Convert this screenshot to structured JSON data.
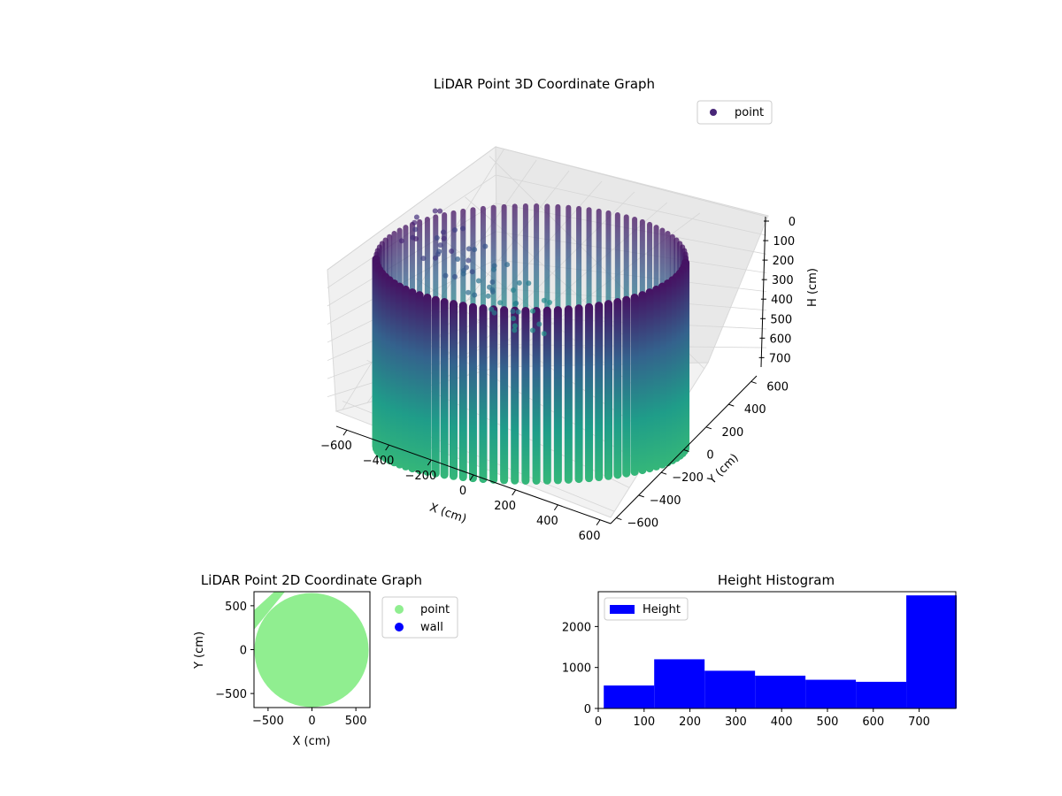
{
  "chart_data": [
    {
      "type": "scatter",
      "title": "LiDAR Point 3D Coordinate Graph",
      "xlabel": "X (cm)",
      "ylabel": "Y (cm)",
      "zlabel": "H (cm)",
      "xlim": [
        -650,
        650
      ],
      "ylim": [
        -650,
        650
      ],
      "zlim": [
        780,
        0
      ],
      "x_ticks": [
        -600,
        -400,
        -200,
        0,
        200,
        400,
        600
      ],
      "y_ticks": [
        -600,
        -400,
        -200,
        0,
        200,
        400,
        600
      ],
      "z_ticks": [
        0,
        100,
        200,
        300,
        400,
        500,
        600,
        700
      ],
      "grid": true,
      "legend": {
        "placement": "top-right",
        "entries": [
          {
            "label": "point",
            "color": "#482677"
          }
        ]
      },
      "colormap": "viridis",
      "series": [
        {
          "name": "point",
          "shape": "cylinder-wall",
          "radius": 620,
          "height_range": [
            0,
            780
          ],
          "columns": 90
        }
      ]
    },
    {
      "type": "scatter",
      "title": "LiDAR Point 2D Coordinate Graph",
      "xlabel": "X (cm)",
      "ylabel": "Y (cm)",
      "xlim": [
        -660,
        660
      ],
      "ylim": [
        -660,
        660
      ],
      "x_ticks": [
        -500,
        0,
        500
      ],
      "y_ticks": [
        -500,
        0,
        500
      ],
      "legend": {
        "placement": "outside-right",
        "entries": [
          {
            "label": "point",
            "color": "#90ee90"
          },
          {
            "label": "wall",
            "color": "#0000ff"
          }
        ]
      },
      "series": [
        {
          "name": "point",
          "color": "#90ee90",
          "shape": "disk",
          "radius": 650
        },
        {
          "name": "wall",
          "color": "#0000ff",
          "points": []
        }
      ]
    },
    {
      "type": "bar",
      "title": "Height Histogram",
      "xlabel": "",
      "ylabel": "",
      "xlim": [
        0,
        780
      ],
      "ylim": [
        0,
        2850
      ],
      "x_ticks": [
        0,
        100,
        200,
        300,
        400,
        500,
        600,
        700
      ],
      "y_ticks": [
        0,
        1000,
        2000
      ],
      "legend": {
        "placement": "top-left",
        "entries": [
          {
            "label": "Height",
            "color": "#0000ff"
          }
        ]
      },
      "bin_edges": [
        12,
        122,
        232,
        342,
        452,
        562,
        672,
        782
      ],
      "counts": [
        560,
        1200,
        920,
        800,
        700,
        650,
        2760
      ],
      "color": "#0000ff"
    }
  ]
}
